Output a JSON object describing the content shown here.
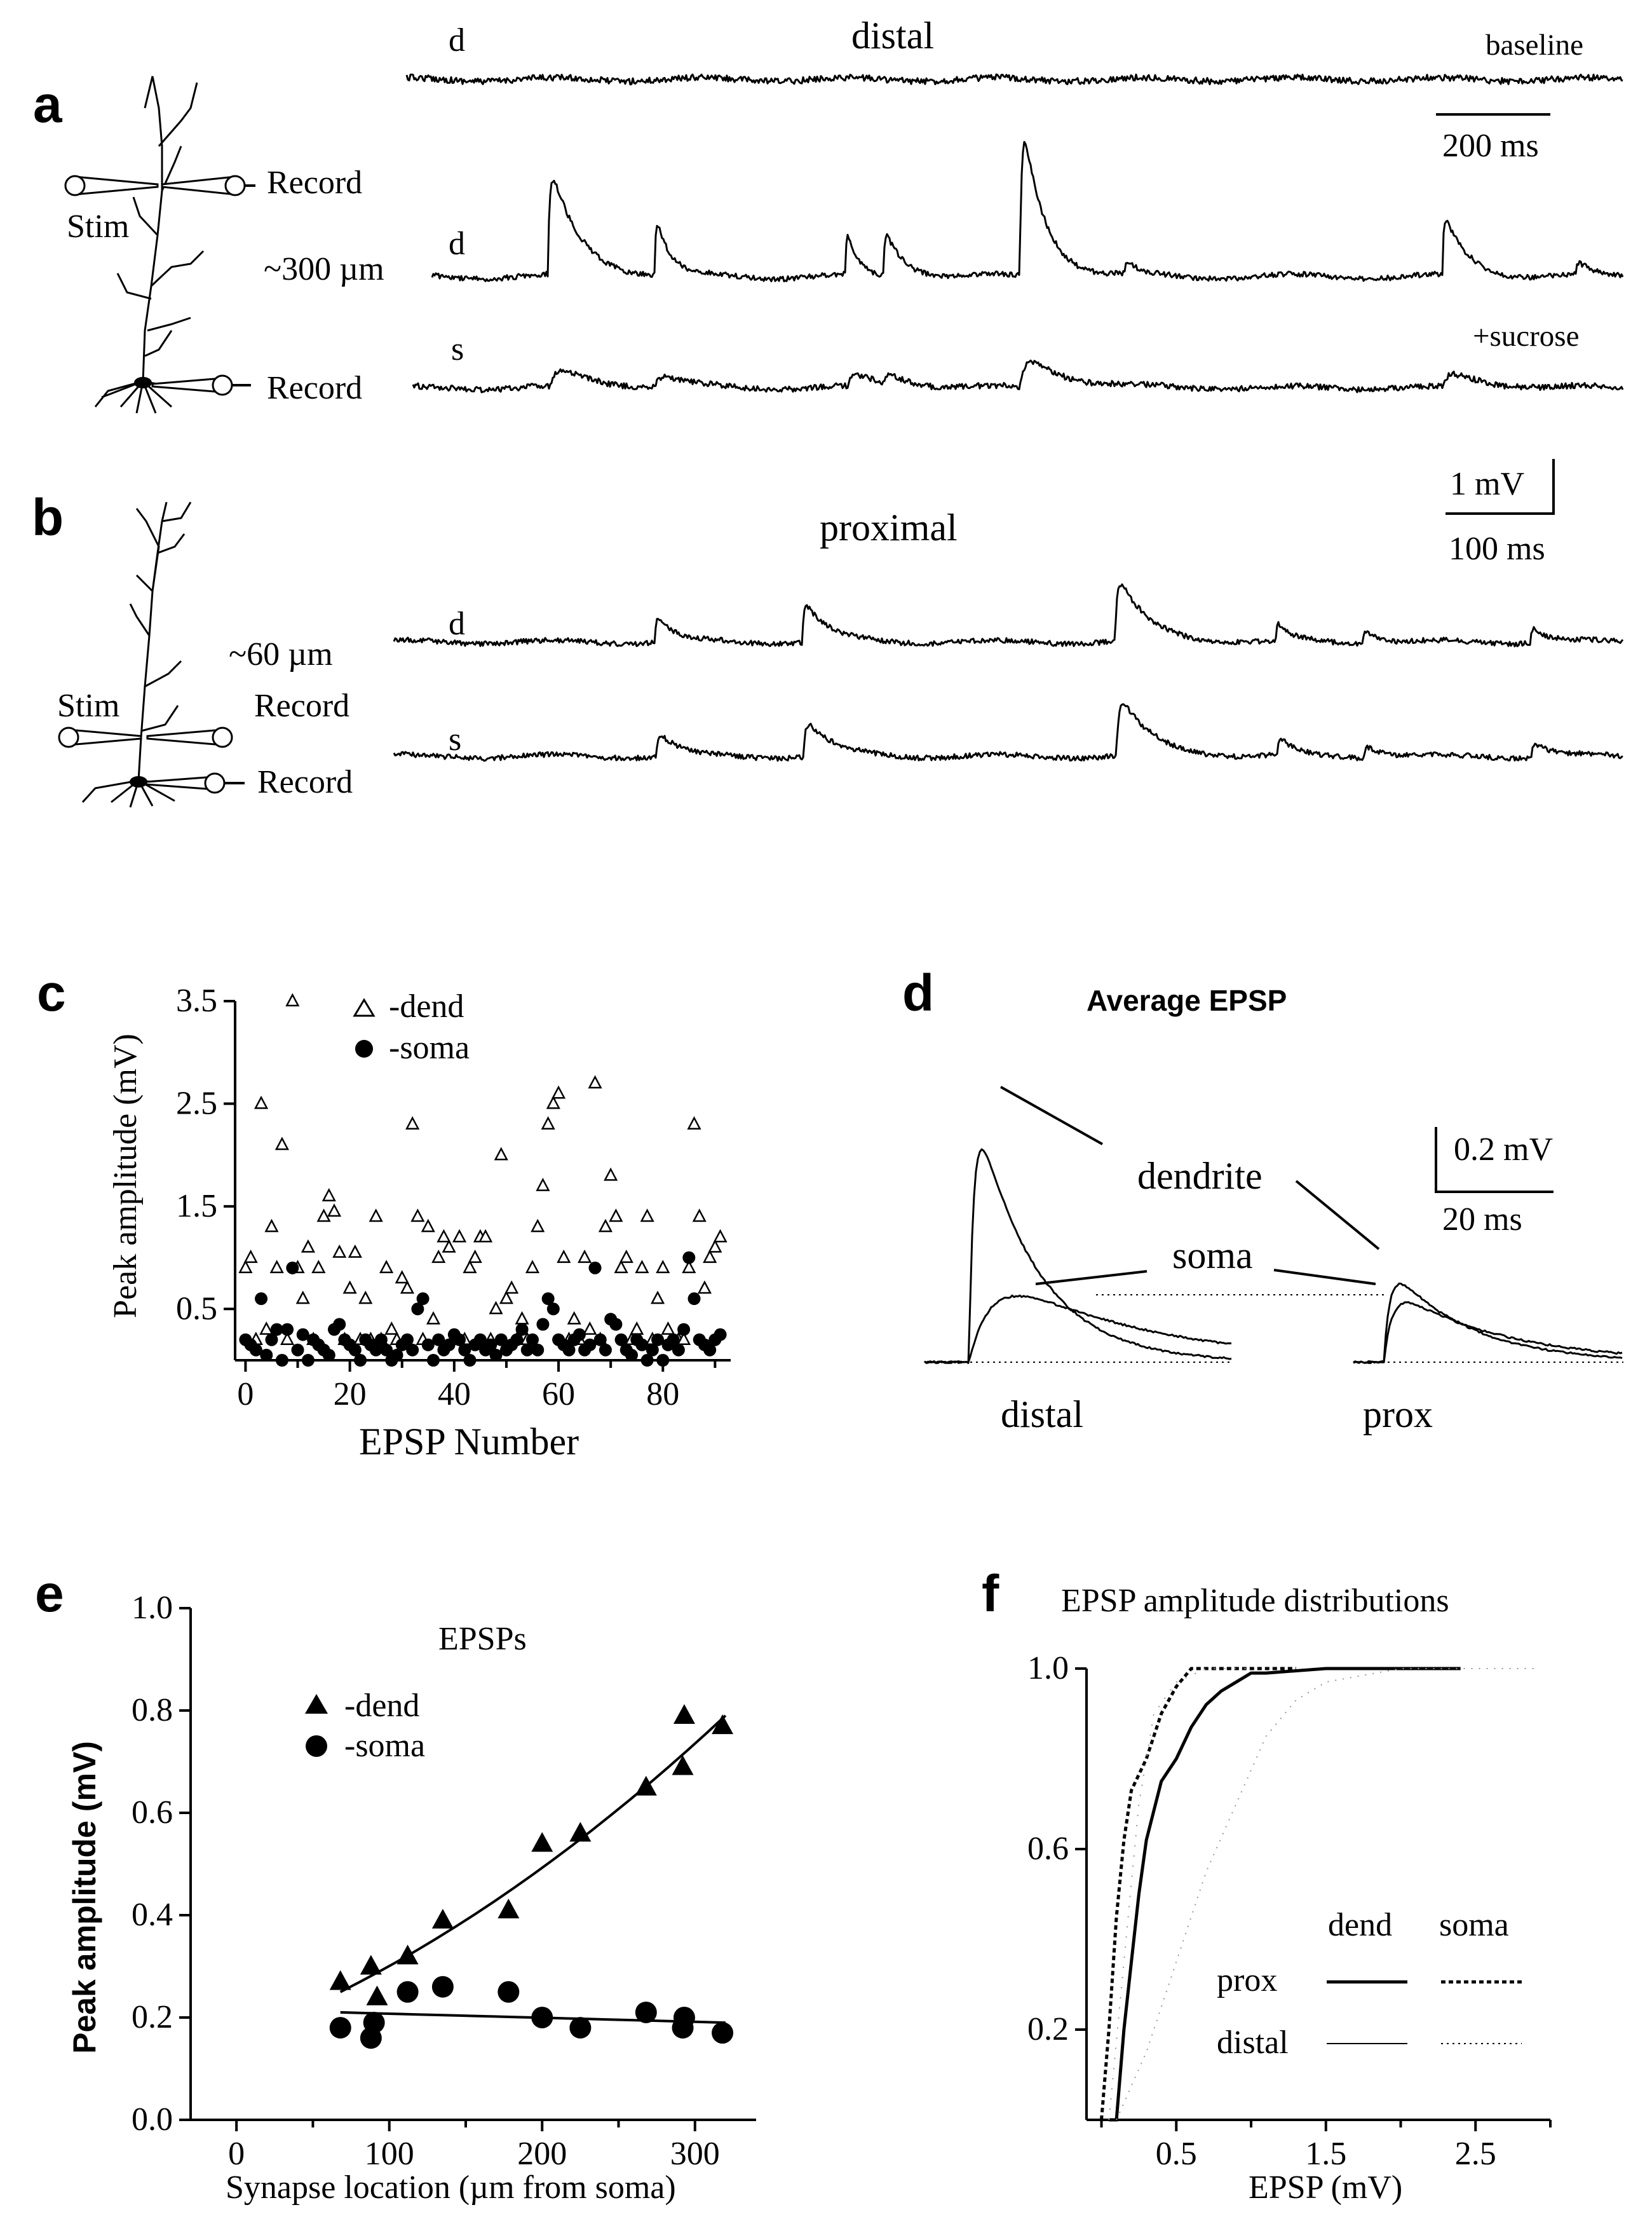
{
  "panel_a": {
    "label": "a",
    "title": "distal",
    "trace_labels": [
      "d",
      "d",
      "s"
    ],
    "stim_label": "Stim",
    "record_labels": [
      "Record",
      "Record"
    ],
    "distance": "~300 µm",
    "baseline": "baseline",
    "sucrose": "+sucrose",
    "scalebar_time": "200 ms"
  },
  "panel_b": {
    "label": "b",
    "title": "proximal",
    "trace_labels": [
      "d",
      "s"
    ],
    "stim_label": "Stim",
    "record_labels": [
      "Record",
      "Record"
    ],
    "distance": "~60 µm",
    "scalebar_v": "1 mV",
    "scalebar_time": "100 ms"
  },
  "panel_d": {
    "label": "d",
    "title": "Average EPSP",
    "dendrite": "dendrite",
    "soma": "soma",
    "distal": "distal",
    "prox": "prox",
    "scalebar_v": "0.2 mV",
    "scalebar_time": "20 ms"
  },
  "panel_labels": {
    "c": "c",
    "e": "e",
    "f": "f"
  },
  "chart_data": [
    {
      "panel": "c",
      "type": "scatter",
      "xlabel": "EPSP Number",
      "ylabel": "Peak amplitude (mV)",
      "xlim": [
        -2,
        93
      ],
      "ylim": [
        0,
        3.5
      ],
      "xticks": [
        "0",
        "20",
        "40",
        "60",
        "80"
      ],
      "yticks": [
        "3.5",
        "2.5",
        "1.5",
        "0.5"
      ],
      "legend": [
        "-dend",
        "-soma"
      ],
      "series": [
        {
          "name": "-dend",
          "marker": "open-triangle",
          "x": [
            0,
            1,
            2,
            3,
            4,
            5,
            6,
            7,
            8,
            9,
            10,
            11,
            12,
            13,
            14,
            15,
            16,
            17,
            18,
            19,
            20,
            21,
            22,
            23,
            24,
            25,
            26,
            27,
            28,
            29,
            30,
            31,
            32,
            33,
            34,
            35,
            36,
            37,
            38,
            39,
            40,
            41,
            42,
            43,
            44,
            45,
            46,
            47,
            48,
            49,
            50,
            51,
            52,
            53,
            54,
            55,
            56,
            57,
            58,
            59,
            60,
            61,
            62,
            63,
            64,
            65,
            66,
            67,
            68,
            69,
            70,
            71,
            72,
            73,
            74,
            75,
            76,
            77,
            78,
            79,
            80,
            81,
            82,
            83,
            84,
            85,
            86,
            87,
            88,
            89,
            90,
            91
          ],
          "y": [
            0.9,
            1.0,
            0.2,
            2.5,
            0.3,
            1.3,
            0.9,
            2.1,
            0.2,
            3.5,
            0.9,
            0.6,
            1.1,
            0.2,
            0.9,
            1.4,
            1.6,
            1.45,
            1.05,
            0.2,
            0.7,
            1.05,
            0.2,
            0.6,
            0.2,
            1.4,
            0.2,
            0.9,
            0.3,
            0.2,
            0.8,
            0.7,
            2.3,
            1.4,
            0.2,
            1.3,
            0.4,
            1.0,
            1.2,
            1.1,
            0.2,
            1.2,
            0.2,
            0.9,
            1.0,
            1.2,
            1.2,
            0.2,
            0.5,
            2.0,
            0.6,
            0.7,
            0.2,
            0.4,
            0.2,
            0.9,
            1.3,
            1.7,
            2.3,
            2.5,
            2.6,
            1.0,
            0.2,
            0.4,
            0.2,
            1.0,
            0.3,
            2.7,
            0.2,
            1.3,
            1.8,
            1.4,
            0.9,
            1.0,
            0.2,
            0.3,
            0.9,
            1.4,
            0.2,
            0.6,
            0.9,
            0.3,
            0.2,
            0.2,
            0.2,
            0.9,
            2.3,
            1.4,
            0.7,
            1.0,
            1.1,
            1.2
          ]
        },
        {
          "name": "-soma",
          "marker": "filled-circle",
          "x": [
            0,
            1,
            2,
            3,
            4,
            5,
            6,
            7,
            8,
            9,
            10,
            11,
            12,
            13,
            14,
            15,
            16,
            17,
            18,
            19,
            20,
            21,
            22,
            23,
            24,
            25,
            26,
            27,
            28,
            29,
            30,
            31,
            32,
            33,
            34,
            35,
            36,
            37,
            38,
            39,
            40,
            41,
            42,
            43,
            44,
            45,
            46,
            47,
            48,
            49,
            50,
            51,
            52,
            53,
            54,
            55,
            56,
            57,
            58,
            59,
            60,
            61,
            62,
            63,
            64,
            65,
            66,
            67,
            68,
            69,
            70,
            71,
            72,
            73,
            74,
            75,
            76,
            77,
            78,
            79,
            80,
            81,
            82,
            83,
            84,
            85,
            86,
            87,
            88,
            89,
            90,
            91
          ],
          "y": [
            0.2,
            0.15,
            0.1,
            0.6,
            0.05,
            0.2,
            0.3,
            0.0,
            0.3,
            0.9,
            0.1,
            0.25,
            0.0,
            0.2,
            0.15,
            0.1,
            0.05,
            0.3,
            0.35,
            0.2,
            0.15,
            0.1,
            0.0,
            0.2,
            0.15,
            0.1,
            0.2,
            0.1,
            0.0,
            0.05,
            0.15,
            0.2,
            0.1,
            0.5,
            0.6,
            0.15,
            0.0,
            0.2,
            0.1,
            0.15,
            0.25,
            0.2,
            0.1,
            0.0,
            0.15,
            0.2,
            0.1,
            0.15,
            0.05,
            0.2,
            0.1,
            0.15,
            0.2,
            0.3,
            0.1,
            0.2,
            0.1,
            0.35,
            0.6,
            0.5,
            0.2,
            0.15,
            0.1,
            0.2,
            0.25,
            0.1,
            0.15,
            0.9,
            0.2,
            0.1,
            0.4,
            0.35,
            0.2,
            0.1,
            0.05,
            0.2,
            0.15,
            0.0,
            0.1,
            0.2,
            0.0,
            0.15,
            0.2,
            0.1,
            0.3,
            1.0,
            0.6,
            0.2,
            0.15,
            0.1,
            0.2,
            0.25
          ]
        }
      ]
    },
    {
      "panel": "e",
      "type": "scatter",
      "title": "EPSPs",
      "xlabel": "Synapse location (µm from soma)",
      "ylabel": "Peak amplitude (mV)",
      "xlim": [
        -30,
        340
      ],
      "ylim": [
        0,
        1.0
      ],
      "xticks": [
        "0",
        "100",
        "200",
        "300"
      ],
      "yticks": [
        "0.0",
        "0.2",
        "0.4",
        "0.6",
        "0.8",
        "1.0"
      ],
      "legend": [
        "-dend",
        "-soma"
      ],
      "series": [
        {
          "name": "-dend",
          "marker": "filled-triangle",
          "x": [
            68,
            88,
            92,
            112,
            135,
            178,
            200,
            225,
            268,
            292,
            293,
            318
          ],
          "y": [
            0.27,
            0.3,
            0.24,
            0.32,
            0.39,
            0.41,
            0.54,
            0.56,
            0.65,
            0.69,
            0.79,
            0.77
          ]
        },
        {
          "name": "-soma",
          "marker": "filled-circle",
          "x": [
            68,
            88,
            90,
            112,
            135,
            178,
            200,
            225,
            268,
            292,
            293,
            318
          ],
          "y": [
            0.18,
            0.16,
            0.19,
            0.25,
            0.26,
            0.25,
            0.2,
            0.18,
            0.21,
            0.18,
            0.2,
            0.17
          ]
        }
      ],
      "fits": [
        {
          "series": "-dend",
          "x": [
            68,
            320
          ],
          "y": [
            0.25,
            0.79
          ]
        },
        {
          "series": "-soma",
          "x": [
            68,
            320
          ],
          "y": [
            0.21,
            0.19
          ]
        }
      ]
    },
    {
      "panel": "f",
      "type": "line",
      "title": "EPSP amplitude distributions",
      "xlabel": "EPSP (mV)",
      "xlim": [
        -0.1,
        3.0
      ],
      "ylim": [
        0,
        1.0
      ],
      "xticks": [
        "0.5",
        "1.5",
        "2.5"
      ],
      "yticks": [
        "0.2",
        "0.6",
        "1.0"
      ],
      "legend_columns": [
        "dend",
        "soma"
      ],
      "legend_rows": [
        "prox",
        "distal"
      ],
      "series": [
        {
          "name": "prox dend",
          "x": [
            0.05,
            0.1,
            0.15,
            0.2,
            0.25,
            0.3,
            0.4,
            0.5,
            0.6,
            0.7,
            0.8,
            0.9,
            1.0,
            1.1,
            1.5,
            2.4
          ],
          "y": [
            0.0,
            0.0,
            0.2,
            0.35,
            0.5,
            0.62,
            0.75,
            0.8,
            0.87,
            0.92,
            0.95,
            0.97,
            0.99,
            0.99,
            1.0,
            1.0
          ]
        },
        {
          "name": "prox soma",
          "x": [
            0.0,
            0.05,
            0.1,
            0.15,
            0.2,
            0.3,
            0.4,
            0.5,
            0.6,
            0.7,
            1.3
          ],
          "y": [
            0.0,
            0.2,
            0.45,
            0.62,
            0.73,
            0.8,
            0.9,
            0.96,
            1.0,
            1.0,
            1.0
          ]
        },
        {
          "name": "distal dend",
          "x": [
            0.1,
            0.3,
            0.5,
            0.7,
            0.9,
            1.1,
            1.3,
            1.5,
            2.0,
            2.9
          ],
          "y": [
            0.0,
            0.15,
            0.35,
            0.55,
            0.7,
            0.85,
            0.93,
            0.97,
            1.0,
            1.0
          ]
        },
        {
          "name": "distal soma",
          "x": [
            0.05,
            0.15,
            0.25,
            0.35,
            0.5,
            0.7,
            1.0
          ],
          "y": [
            0.0,
            0.35,
            0.7,
            0.9,
            0.97,
            1.0,
            1.0
          ]
        }
      ]
    }
  ]
}
